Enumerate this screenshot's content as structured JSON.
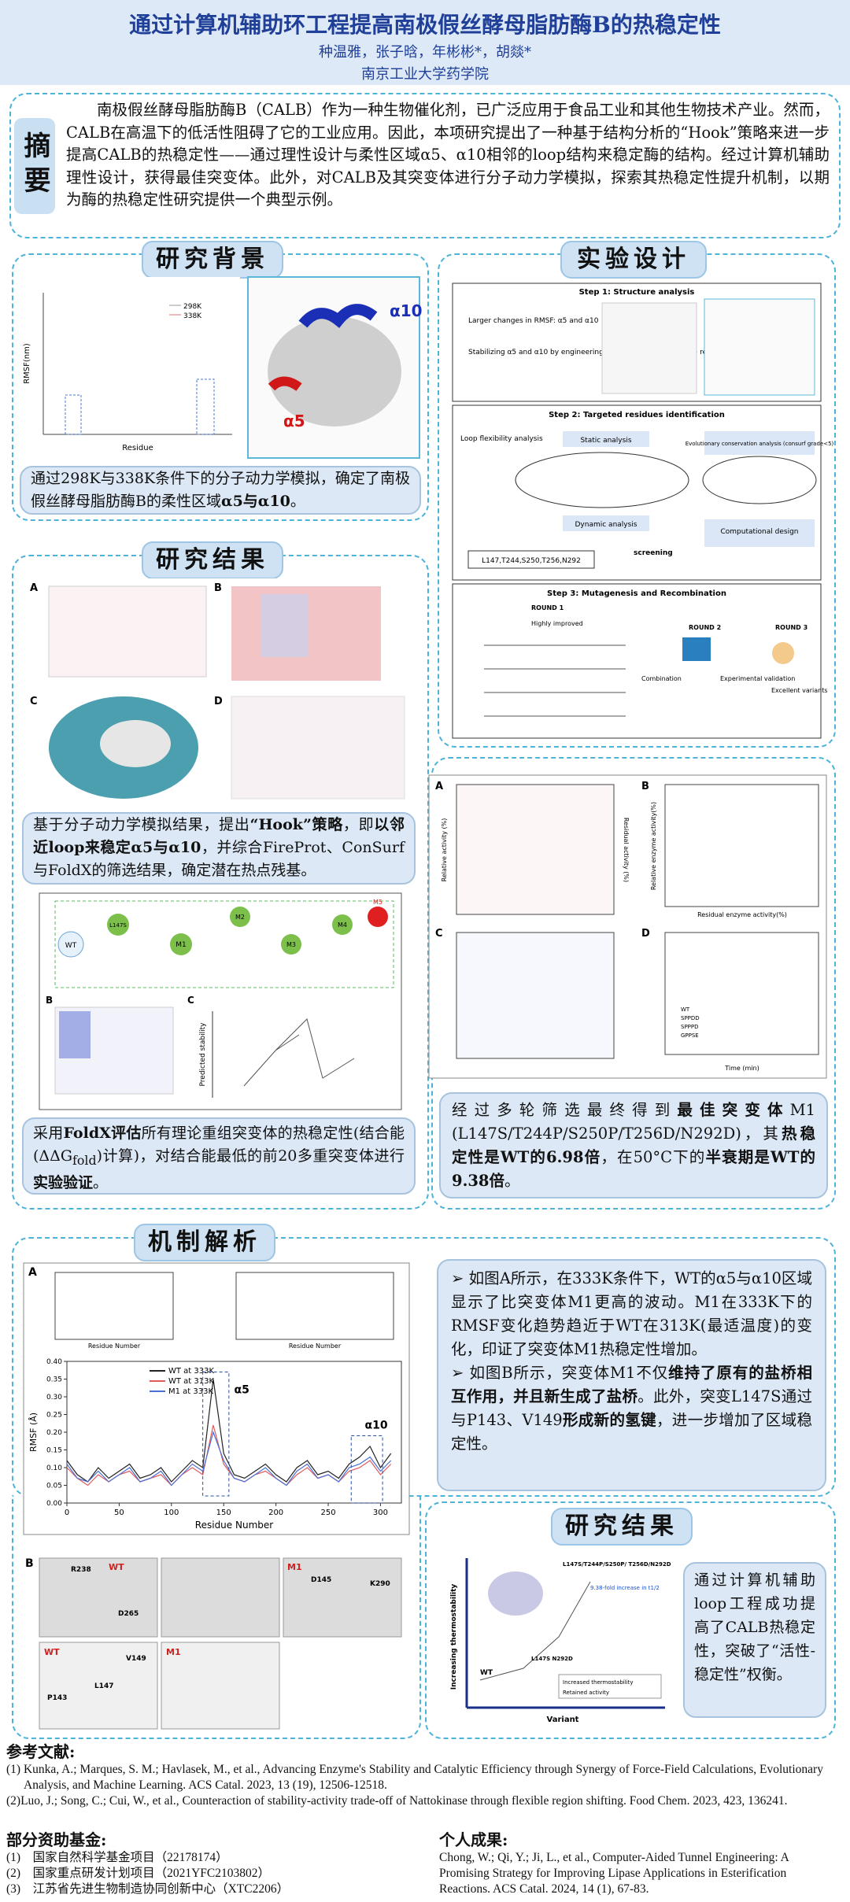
{
  "header": {
    "title": "通过计算机辅助环工程提高南极假丝酵母脂肪酶B的热稳定性",
    "authors": "种温雅，张子晗，年彬彬*，胡燚*",
    "affiliation": "南京工业大学药学院"
  },
  "abstract": {
    "label": "摘要",
    "text": "南极假丝酵母脂肪酶B（CALB）作为一种生物催化剂，已广泛应用于食品工业和其他生物技术产业。然而，CALB在高温下的低活性阻碍了它的工业应用。因此，本项研究提出了一种基于结构分析的“Hook”策略来进一步提高CALB的热稳定性——通过理性设计与柔性区域α5、α10相邻的loop结构来稳定酶的结构。经过计算机辅助理性设计，获得最佳突变体。此外，对CALB及其突变体进行分子动力学模拟，探索其热稳定性提升机制，以期为酶的热稳定性研究提供一个典型示例。"
  },
  "background": {
    "title": "研究背景",
    "text": [
      "通过298K与338K条件下的分子动力学模拟，确定了南极假丝酵母脂肪酶B的柔性区域",
      "α5与α10",
      "。"
    ],
    "figure": {
      "legend": [
        "298K",
        "338K"
      ],
      "x_label": "Residue",
      "y_label": "RMSF(nm)",
      "labels": [
        "α10",
        "α5"
      ]
    }
  },
  "design": {
    "title": "实验设计",
    "steps": [
      "Step 1: Structure analysis",
      "Step 2: Targeted residues identification",
      "Step 3:  Mutagenesis and Recombination"
    ],
    "step1": [
      "Larger changes in RMSF: α5 and α10",
      "Stabilizing α5 and α10 by engineering loops that closed to these regions"
    ],
    "step2": [
      "Loop flexibility analysis",
      "Static analysis",
      "Dynamic analysis",
      "Evolutionary conservation analysis (consurf grade<5)",
      "Computational design",
      "screening",
      "L147,T244,S250,T256,N292"
    ],
    "step3": [
      "ROUND 1",
      "Highly improved",
      "Combination",
      "ROUND 2",
      "Experimental validation",
      "ROUND 3",
      "Excellent variants"
    ]
  },
  "results1": {
    "title": "研究结果",
    "panels": [
      "A",
      "B",
      "C",
      "D"
    ],
    "text1": [
      "基于分子动力学模拟结果，提出",
      "“Hook”策略",
      "，即",
      "以邻近loop来稳定α5与α10",
      "，并综合FireProt、ConSurf与FoldX的筛选结果，确定潜在热点残基。"
    ],
    "tree": [
      "WT",
      "L147S",
      "M1",
      "M2",
      "M3",
      "M4",
      "M5"
    ],
    "y_label": "Predicted stability",
    "text2": [
      "采用",
      "FoldX评估",
      "所有理论重组突变体的热稳定性(结合能(ΔΔG",
      "fold",
      ")计算)，对结合能最低的前20多重突变体进行",
      "实验验证",
      "。"
    ]
  },
  "results2": {
    "axis_labels": [
      "Relative activity (%)",
      "Residual activity (%)",
      "Residual enzyme activity(%)",
      "Relative enzyme activity(%)",
      "Time (min)"
    ],
    "legend": [
      "WT",
      "SPPDD",
      "SPPPD",
      "GPPSE"
    ],
    "text": [
      "经过多轮筛选最终得到",
      "最佳突变体",
      "M1 (L147S/T244P/S250P/T256D/N292D)，其",
      "热稳定性是WT的6.98倍",
      "，在50°C下的",
      "半衰期是WT的9.38倍",
      "。"
    ]
  },
  "mechanism": {
    "title": "机制解析",
    "panels": [
      "A",
      "B"
    ],
    "chart": {
      "type": "line",
      "x_label": "Residue Number",
      "y_label": "RMSF (Å)",
      "annotations": [
        "α5",
        "α10"
      ],
      "x": [
        0,
        10,
        20,
        30,
        40,
        50,
        60,
        70,
        80,
        90,
        100,
        110,
        120,
        130,
        140,
        150,
        160,
        170,
        180,
        190,
        200,
        210,
        220,
        230,
        240,
        250,
        260,
        270,
        280,
        290,
        300,
        310
      ],
      "series": [
        {
          "name": "WT at 333K",
          "color": "#222222",
          "values": [
            0.12,
            0.08,
            0.06,
            0.1,
            0.07,
            0.09,
            0.11,
            0.07,
            0.08,
            0.1,
            0.06,
            0.09,
            0.12,
            0.1,
            0.35,
            0.14,
            0.08,
            0.07,
            0.09,
            0.11,
            0.08,
            0.06,
            0.1,
            0.12,
            0.08,
            0.09,
            0.07,
            0.11,
            0.13,
            0.16,
            0.1,
            0.14
          ]
        },
        {
          "name": "WT at 313K",
          "color": "#e05a5a",
          "values": [
            0.1,
            0.07,
            0.05,
            0.08,
            0.06,
            0.08,
            0.09,
            0.06,
            0.07,
            0.08,
            0.05,
            0.08,
            0.1,
            0.08,
            0.22,
            0.11,
            0.07,
            0.06,
            0.08,
            0.09,
            0.07,
            0.05,
            0.08,
            0.1,
            0.07,
            0.08,
            0.06,
            0.09,
            0.1,
            0.12,
            0.08,
            0.11
          ]
        },
        {
          "name": "M1 at 333K",
          "color": "#4a6fd6",
          "values": [
            0.11,
            0.07,
            0.06,
            0.09,
            0.06,
            0.08,
            0.1,
            0.06,
            0.07,
            0.09,
            0.05,
            0.08,
            0.11,
            0.09,
            0.2,
            0.12,
            0.07,
            0.06,
            0.08,
            0.1,
            0.07,
            0.05,
            0.09,
            0.11,
            0.07,
            0.08,
            0.06,
            0.1,
            0.11,
            0.13,
            0.09,
            0.12
          ]
        }
      ],
      "xlim": [
        0,
        320
      ],
      "xticks": [
        0,
        50,
        100,
        150,
        200,
        250,
        300
      ],
      "ylim": [
        0,
        0.4
      ],
      "yticks": [
        {
          "value": 0,
          "label": "0.00"
        },
        {
          "value": 0.05,
          "label": "0.05"
        },
        {
          "value": 0.1,
          "label": "0.10"
        },
        {
          "value": 0.15,
          "label": "0.15"
        },
        {
          "value": 0.2,
          "label": "0.20"
        },
        {
          "value": 0.25,
          "label": "0.25"
        },
        {
          "value": 0.3,
          "label": "0.30"
        },
        {
          "value": 0.35,
          "label": "0.35"
        },
        {
          "value": 0.4,
          "label": "0.40"
        }
      ]
    },
    "structure_labels": [
      "WT",
      "M1",
      "WT",
      "M1",
      "R238",
      "D265",
      "D145",
      "K290",
      "P143",
      "L147",
      "V149"
    ],
    "bullet1": "如图A所示，在333K条件下，WT的α5与α10区域显示了比突变体M1更高的波动。M1在333K下的RMSF变化趋势趋近于WT在313K(最适温度)的变化，印证了突变体M1热稳定性增加。",
    "bullet2": [
      "如图B所示，突变体M1不仅",
      "维持了原有的盐桥相互作用，并且新生成了盐桥",
      "。此外，突变L147S通过与P143、V149",
      "形成新的氢键",
      "，进一步增加了区域稳定性。"
    ]
  },
  "results3": {
    "title": "研究结果",
    "figure": {
      "y_label": "Increasing thermostability",
      "x_label": "Variant",
      "points": [
        "WT",
        "L147S N292D",
        "L147S/T244P/S250P/ T256D/N292D"
      ],
      "note": "9.38-fold increase in t1/2",
      "legend": [
        "Increased thermostability",
        "Retained activity"
      ]
    },
    "text": "通过计算机辅助loop工程成功提高了CALB热稳定性，突破了“活性-稳定性”权衡。"
  },
  "references": {
    "title": "参考文献:",
    "items": [
      "(1)  Kunka, A.; Marques, S. M.; Havlasek, M., et al., Advancing Enzyme's Stability and Catalytic Efficiency through Synergy of Force-Field Calculations, Evolutionary Analysis, and Machine Learning. ACS Catal. 2023, 13 (19), 12506-12518.",
      "(2)Luo, J.;  Song, C.;  Cui, W., et al., Counteraction of stability-activity trade-off of Nattokinase through flexible region shifting. Food Chem. 2023, 423, 136241."
    ]
  },
  "funding": {
    "title": "部分资助基金:",
    "items": [
      "(1)    国家自然科学基金项目（22178174）",
      "(2)    国家重点研发计划项目（2021YFC2103802）",
      "(3)    江苏省先进生物制造协同创新中心（XTC2206）"
    ]
  },
  "personal": {
    "title": "个人成果:",
    "items": [
      "Chong, W.;  Qi, Y.;  Ji, L., et al., Computer-Aided Tunnel Engineering: A Promising Strategy for Improving Lipase Applications in Esterification Reactions. ACS Catal. 2024, 14 (1), 67-83."
    ]
  }
}
